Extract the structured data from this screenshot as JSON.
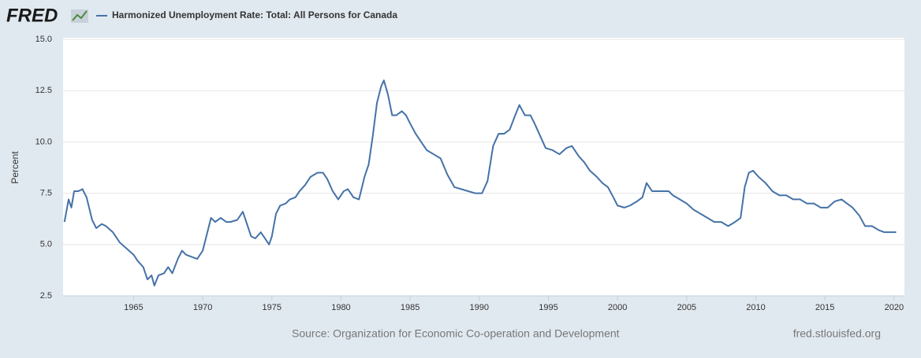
{
  "chart_data": {
    "type": "line",
    "logo": "FRED",
    "ylabel": "Percent",
    "source": "Source: Organization for Economic Co-operation and Development",
    "credit": "fred.stlouisfed.org",
    "x": [
      1960.0,
      1960.3,
      1960.5,
      1960.7,
      1961.0,
      1961.3,
      1961.6,
      1962.0,
      1962.3,
      1962.7,
      1963.0,
      1963.5,
      1964.0,
      1964.5,
      1965.0,
      1965.3,
      1965.7,
      1966.0,
      1966.3,
      1966.5,
      1966.8,
      1967.2,
      1967.5,
      1967.8,
      1968.2,
      1968.5,
      1968.8,
      1969.2,
      1969.6,
      1970.0,
      1970.3,
      1970.6,
      1970.9,
      1971.3,
      1971.7,
      1972.0,
      1972.5,
      1972.9,
      1973.2,
      1973.5,
      1973.8,
      1974.2,
      1974.5,
      1974.8,
      1975.0,
      1975.3,
      1975.6,
      1976.0,
      1976.3,
      1976.7,
      1977.0,
      1977.4,
      1977.8,
      1978.3,
      1978.7,
      1979.0,
      1979.4,
      1979.8,
      1980.2,
      1980.5,
      1980.9,
      1981.3,
      1981.7,
      1982.0,
      1982.3,
      1982.6,
      1982.9,
      1983.1,
      1983.4,
      1983.7,
      1984.0,
      1984.4,
      1984.7,
      1985.0,
      1985.4,
      1985.8,
      1986.2,
      1986.7,
      1987.2,
      1987.7,
      1988.2,
      1988.7,
      1989.2,
      1989.7,
      1990.2,
      1990.6,
      1991.0,
      1991.4,
      1991.8,
      1992.2,
      1992.6,
      1992.9,
      1993.3,
      1993.7,
      1994.0,
      1994.4,
      1994.8,
      1995.3,
      1995.8,
      1996.3,
      1996.7,
      1997.2,
      1997.6,
      1998.0,
      1998.5,
      1998.9,
      1999.3,
      1999.7,
      2000.0,
      2000.5,
      2000.9,
      2001.4,
      2001.8,
      2002.1,
      2002.5,
      2002.9,
      2003.3,
      2003.7,
      2004.0,
      2004.5,
      2005.0,
      2005.5,
      2006.0,
      2006.5,
      2007.0,
      2007.5,
      2008.0,
      2008.5,
      2008.9,
      2009.2,
      2009.5,
      2009.8,
      2010.2,
      2010.7,
      2011.2,
      2011.7,
      2012.2,
      2012.7,
      2013.2,
      2013.7,
      2014.2,
      2014.7,
      2015.2,
      2015.7,
      2016.2,
      2016.6,
      2017.0,
      2017.5,
      2017.9,
      2018.4,
      2018.9,
      2019.3,
      2019.7,
      2020.0,
      2020.15
    ],
    "series": [
      {
        "name": "Harmonized Unemployment Rate: Total: All Persons for Canada",
        "color": "#4572a7",
        "values": [
          6.1,
          7.2,
          6.8,
          7.6,
          7.6,
          7.7,
          7.3,
          6.2,
          5.8,
          6.0,
          5.9,
          5.6,
          5.1,
          4.8,
          4.5,
          4.2,
          3.9,
          3.3,
          3.5,
          3.0,
          3.5,
          3.6,
          3.9,
          3.6,
          4.3,
          4.7,
          4.5,
          4.4,
          4.3,
          4.7,
          5.5,
          6.3,
          6.1,
          6.3,
          6.1,
          6.1,
          6.2,
          6.6,
          6.0,
          5.4,
          5.3,
          5.6,
          5.3,
          5.0,
          5.4,
          6.5,
          6.9,
          7.0,
          7.2,
          7.3,
          7.6,
          7.9,
          8.3,
          8.5,
          8.5,
          8.2,
          7.6,
          7.2,
          7.6,
          7.7,
          7.3,
          7.2,
          8.3,
          8.9,
          10.3,
          11.9,
          12.7,
          13.0,
          12.3,
          11.3,
          11.3,
          11.5,
          11.3,
          10.9,
          10.4,
          10.0,
          9.6,
          9.4,
          9.2,
          8.4,
          7.8,
          7.7,
          7.6,
          7.5,
          7.5,
          8.1,
          9.8,
          10.4,
          10.4,
          10.6,
          11.3,
          11.8,
          11.3,
          11.3,
          10.9,
          10.3,
          9.7,
          9.6,
          9.4,
          9.7,
          9.8,
          9.3,
          9.0,
          8.6,
          8.3,
          8.0,
          7.8,
          7.3,
          6.9,
          6.8,
          6.9,
          7.1,
          7.3,
          8.0,
          7.6,
          7.6,
          7.6,
          7.6,
          7.4,
          7.2,
          7.0,
          6.7,
          6.5,
          6.3,
          6.1,
          6.1,
          5.9,
          6.1,
          6.3,
          7.8,
          8.5,
          8.6,
          8.3,
          8.0,
          7.6,
          7.4,
          7.4,
          7.2,
          7.2,
          7.0,
          7.0,
          6.8,
          6.8,
          7.1,
          7.2,
          7.0,
          6.8,
          6.4,
          5.9,
          5.9,
          5.7,
          5.6,
          5.6,
          5.6,
          5.6
        ]
      }
    ],
    "xlim": [
      1959.9,
      2020.75
    ],
    "xticks": [
      1965,
      1970,
      1975,
      1980,
      1985,
      1990,
      1995,
      2000,
      2005,
      2010,
      2015,
      2020
    ],
    "ylim": [
      2.5,
      15
    ],
    "yticks": [
      2.5,
      {
        "value": 5,
        "label": "5.0"
      },
      7.5,
      {
        "value": 10,
        "label": "10.0"
      },
      12.5,
      {
        "value": 15,
        "label": "15.0"
      }
    ],
    "grid": true
  }
}
